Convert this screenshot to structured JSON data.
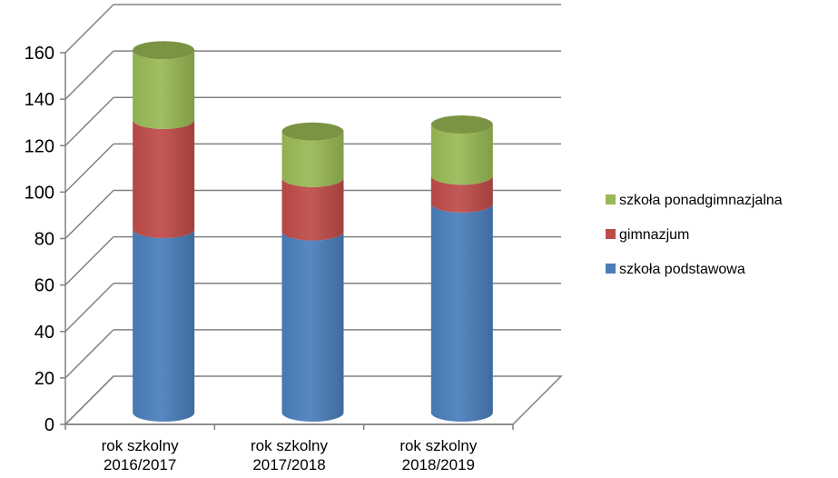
{
  "chart_data": {
    "type": "bar",
    "stacked": true,
    "style": "3d-cylinder",
    "categories": [
      [
        "rok szkolny",
        "2016/2017"
      ],
      [
        "rok szkolny",
        "2017/2018"
      ],
      [
        "rok szkolny",
        "2018/2019"
      ]
    ],
    "series": [
      {
        "name": "szkoła podstawowa",
        "values": [
          79,
          78,
          90
        ],
        "color": "#4a7ebb"
      },
      {
        "name": "gimnazjum",
        "values": [
          47,
          23,
          12
        ],
        "color": "#be4b48"
      },
      {
        "name": "szkoła ponadgimnazjalna",
        "values": [
          30,
          20,
          22
        ],
        "color": "#98b954"
      }
    ],
    "ylim": [
      0,
      160
    ],
    "yticks": [
      0,
      20,
      40,
      60,
      80,
      100,
      120,
      140,
      160
    ],
    "grid": true,
    "legend_position": "right",
    "legend_order": [
      "szkoła ponadgimnazjalna",
      "gimnazjum",
      "szkoła podstawowa"
    ]
  }
}
